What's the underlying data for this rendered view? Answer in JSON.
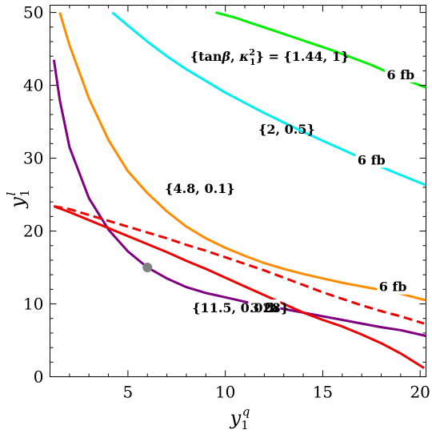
{
  "chart_data": {
    "type": "line",
    "title": "",
    "xlabel": "y_1^q",
    "ylabel": "y_1^l",
    "xlim": [
      1,
      20.3
    ],
    "ylim": [
      0,
      51
    ],
    "xticks": [
      5,
      10,
      15,
      20
    ],
    "yticks": [
      0,
      10,
      20,
      30,
      40,
      50
    ],
    "legend": "none",
    "grid": false,
    "series": [
      {
        "color": "#00ee00",
        "dashed": false,
        "label": "6 fb",
        "label_at": [
          19.0,
          41.5
        ],
        "points": [
          [
            9.5,
            50.0
          ],
          [
            10.5,
            49.3
          ],
          [
            11.5,
            48.4
          ],
          [
            12.5,
            47.5
          ],
          [
            13.5,
            46.6
          ],
          [
            14.5,
            45.7
          ],
          [
            15.5,
            44.8
          ],
          [
            16.5,
            43.8
          ],
          [
            17.5,
            42.8
          ],
          [
            18.5,
            41.6
          ],
          [
            19.3,
            40.7
          ],
          [
            20.3,
            39.7
          ]
        ]
      },
      {
        "color": "#00eeee",
        "dashed": false,
        "label": "6 fb",
        "label_at": [
          17.5,
          29.8
        ],
        "points": [
          [
            4.2,
            50.0
          ],
          [
            5.0,
            48.2
          ],
          [
            6.0,
            46.0
          ],
          [
            7.0,
            44.0
          ],
          [
            8.0,
            42.2
          ],
          [
            9.0,
            40.6
          ],
          [
            10.0,
            39.0
          ],
          [
            11.0,
            37.6
          ],
          [
            12.0,
            36.2
          ],
          [
            13.0,
            34.9
          ],
          [
            14.0,
            33.6
          ],
          [
            15.0,
            32.4
          ],
          [
            16.0,
            31.2
          ],
          [
            17.0,
            30.0
          ],
          [
            18.0,
            28.8
          ],
          [
            19.0,
            27.7
          ],
          [
            20.3,
            26.3
          ]
        ]
      },
      {
        "color": "#ff8c00",
        "dashed": false,
        "label": "6 fb",
        "label_at": [
          18.6,
          12.4
        ],
        "points": [
          [
            1.5,
            50.0
          ],
          [
            2.0,
            45.5
          ],
          [
            3.0,
            38.2
          ],
          [
            4.0,
            32.5
          ],
          [
            5.0,
            28.2
          ],
          [
            6.0,
            25.2
          ],
          [
            7.0,
            22.7
          ],
          [
            8.0,
            20.6
          ],
          [
            9.0,
            19.0
          ],
          [
            10.0,
            17.7
          ],
          [
            11.0,
            16.6
          ],
          [
            12.0,
            15.6
          ],
          [
            13.0,
            14.8
          ],
          [
            14.0,
            14.1
          ],
          [
            15.0,
            13.5
          ],
          [
            16.0,
            12.9
          ],
          [
            17.0,
            12.4
          ],
          [
            18.0,
            11.9
          ],
          [
            19.0,
            11.4
          ],
          [
            20.3,
            10.5
          ]
        ]
      },
      {
        "color": "#800080",
        "dashed": false,
        "label": "3 fb",
        "label_at": [
          12.0,
          9.5
        ],
        "points": [
          [
            1.2,
            43.5
          ],
          [
            1.5,
            38.0
          ],
          [
            2.0,
            31.5
          ],
          [
            3.0,
            24.5
          ],
          [
            4.0,
            20.2
          ],
          [
            5.0,
            17.2
          ],
          [
            6.0,
            15.0
          ],
          [
            7.0,
            13.5
          ],
          [
            8.0,
            12.3
          ],
          [
            9.0,
            11.5
          ],
          [
            10.0,
            10.9
          ],
          [
            11.0,
            10.3
          ],
          [
            12.0,
            9.8
          ],
          [
            13.0,
            9.3
          ],
          [
            14.0,
            8.8
          ],
          [
            15.0,
            8.3
          ],
          [
            16.0,
            7.8
          ],
          [
            17.0,
            7.3
          ],
          [
            18.0,
            6.8
          ],
          [
            19.0,
            6.4
          ],
          [
            20.3,
            5.6
          ]
        ]
      },
      {
        "color": "#ee0000",
        "dashed": false,
        "label": "",
        "label_at": null,
        "points": [
          [
            1.2,
            23.4
          ],
          [
            2.0,
            22.6
          ],
          [
            3.0,
            21.5
          ],
          [
            4.0,
            20.4
          ],
          [
            5.0,
            19.3
          ],
          [
            6.0,
            18.2
          ],
          [
            7.0,
            17.1
          ],
          [
            8.0,
            15.9
          ],
          [
            9.0,
            14.8
          ],
          [
            10.0,
            13.6
          ],
          [
            11.0,
            12.4
          ],
          [
            12.0,
            11.2
          ],
          [
            13.0,
            10.0
          ],
          [
            14.0,
            8.8
          ],
          [
            15.0,
            7.8
          ],
          [
            16.0,
            6.9
          ],
          [
            17.0,
            5.8
          ],
          [
            18.0,
            4.6
          ],
          [
            19.0,
            3.2
          ],
          [
            20.2,
            1.2
          ]
        ]
      },
      {
        "color": "#ee0000",
        "dashed": true,
        "label": "",
        "label_at": null,
        "points": [
          [
            1.2,
            23.4
          ],
          [
            2.0,
            23.0
          ],
          [
            3.0,
            22.2
          ],
          [
            4.0,
            21.4
          ],
          [
            5.0,
            20.6
          ],
          [
            6.0,
            19.8
          ],
          [
            7.0,
            19.0
          ],
          [
            8.0,
            18.1
          ],
          [
            9.0,
            17.3
          ],
          [
            10.0,
            16.4
          ],
          [
            11.0,
            15.5
          ],
          [
            12.0,
            14.6
          ],
          [
            13.0,
            13.6
          ],
          [
            14.0,
            12.6
          ],
          [
            15.0,
            11.6
          ],
          [
            16.0,
            10.7
          ],
          [
            17.0,
            9.8
          ],
          [
            18.0,
            9.0
          ],
          [
            19.0,
            8.3
          ],
          [
            20.2,
            7.3
          ]
        ]
      }
    ],
    "annotations": [
      {
        "text": "{tanβ, κ",
        "sub": "1",
        "sup": "2",
        "after": "} = {1.44, 1}",
        "at": [
          8.2,
          44.0
        ]
      },
      {
        "text": "{2, 0.5}",
        "at": [
          11.7,
          34.0
        ]
      },
      {
        "text": "{4.8, 0.1}",
        "at": [
          6.9,
          25.9
        ]
      },
      {
        "text": "{11.5, 0.028}",
        "at": [
          8.3,
          9.5
        ]
      }
    ],
    "marker": {
      "x": 6.0,
      "y": 15.0,
      "color": "#808080"
    }
  }
}
